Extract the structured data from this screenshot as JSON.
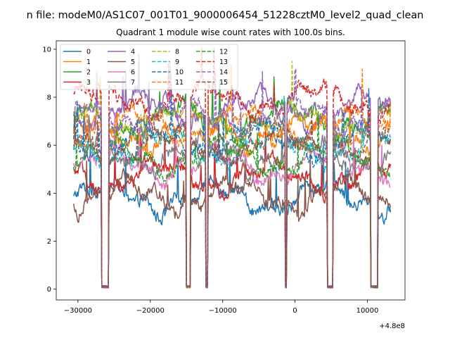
{
  "chart_data": {
    "type": "line",
    "suptitle": "n file: modeM0/AS1C07_001T01_9000006454_51228cztM0_level2_quad_clean",
    "title": "Quadrant 1 module wise count rates with 100.0s bins.",
    "xlabel": "",
    "ylabel": "",
    "x_offset_label": "+4.8e8",
    "xlim": [
      -33000,
      15200
    ],
    "ylim": [
      -0.45,
      10.35
    ],
    "xticks": [
      -30000,
      -20000,
      -10000,
      0,
      10000
    ],
    "xtick_labels": [
      "−30000",
      "−20000",
      "−10000",
      "0",
      "10000"
    ],
    "yticks": [
      0,
      2,
      4,
      6,
      8,
      10
    ],
    "ytick_labels": [
      "0",
      "2",
      "4",
      "6",
      "8",
      "10"
    ],
    "x_range": [
      -30600,
      13200
    ],
    "x_step": 100,
    "gaps": [
      [
        -26700,
        -25800
      ],
      [
        -15000,
        -14500
      ],
      [
        -12300,
        -12100
      ],
      [
        -1350,
        -1200
      ],
      [
        4500,
        5200
      ],
      [
        10500,
        11400
      ]
    ],
    "legend": {
      "position": "upper-left",
      "ncol": 4
    },
    "series": [
      {
        "name": "0",
        "color": "#1f77b4",
        "dash": "solid",
        "level": 3.8
      },
      {
        "name": "1",
        "color": "#ff7f0e",
        "dash": "solid",
        "level": 6.5
      },
      {
        "name": "2",
        "color": "#2ca02c",
        "dash": "solid",
        "level": 7.1
      },
      {
        "name": "3",
        "color": "#d62728",
        "dash": "solid",
        "level": 4.7
      },
      {
        "name": "4",
        "color": "#9467bd",
        "dash": "solid",
        "level": 7.5
      },
      {
        "name": "5",
        "color": "#8c564b",
        "dash": "solid",
        "level": 3.9
      },
      {
        "name": "6",
        "color": "#e377c2",
        "dash": "solid",
        "level": 5.2
      },
      {
        "name": "7",
        "color": "#7f7f7f",
        "dash": "solid",
        "level": 5.6
      },
      {
        "name": "8",
        "color": "#bcbd22",
        "dash": "dashed",
        "level": 7.0
      },
      {
        "name": "9",
        "color": "#17becf",
        "dash": "dashed",
        "level": 5.9
      },
      {
        "name": "10",
        "color": "#1f77b4",
        "dash": "dashed",
        "level": 6.2
      },
      {
        "name": "11",
        "color": "#ff7f0e",
        "dash": "dashed",
        "level": 6.8
      },
      {
        "name": "12",
        "color": "#2ca02c",
        "dash": "dashed",
        "level": 5.5
      },
      {
        "name": "13",
        "color": "#d62728",
        "dash": "dashed",
        "level": 7.9
      },
      {
        "name": "14",
        "color": "#9467bd",
        "dash": "dashed",
        "level": 7.2
      },
      {
        "name": "15",
        "color": "#8c564b",
        "dash": "dashed",
        "level": 6.0
      }
    ]
  }
}
